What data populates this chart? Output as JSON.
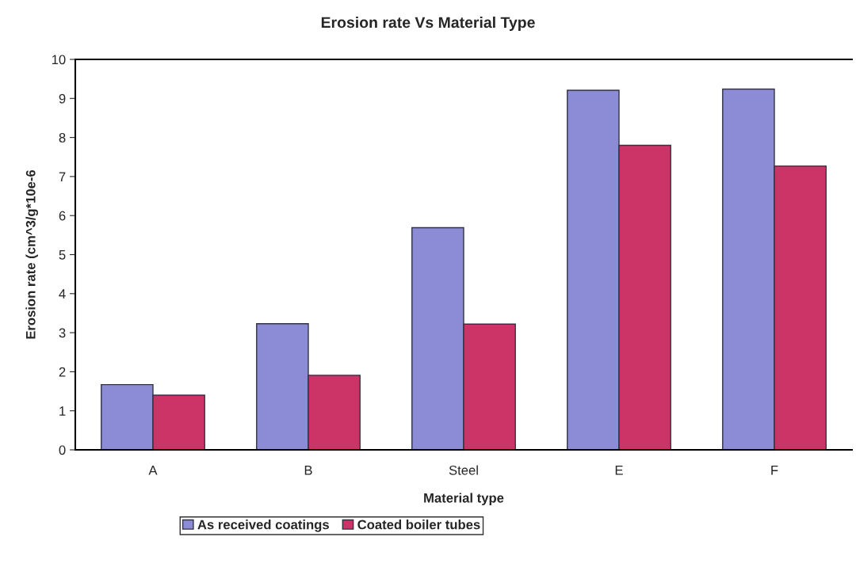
{
  "chart_data": {
    "type": "bar",
    "title": "Erosion rate Vs Material Type",
    "xlabel": "Material type",
    "ylabel": "Erosion rate (cm^3/g*10e-6",
    "categories": [
      "A",
      "B",
      "Steel",
      "E",
      "F"
    ],
    "series": [
      {
        "name": "As received coatings",
        "color": "#8c8cd6",
        "values": [
          1.67,
          3.23,
          5.69,
          9.21,
          9.24
        ]
      },
      {
        "name": "Coated boiler tubes",
        "color": "#cc3366",
        "values": [
          1.4,
          1.91,
          3.22,
          7.8,
          7.27
        ]
      }
    ],
    "ylim": [
      0,
      10
    ],
    "yticks": [
      0,
      1,
      2,
      3,
      4,
      5,
      6,
      7,
      8,
      9,
      10
    ],
    "grid": false,
    "legend": "bottom"
  }
}
